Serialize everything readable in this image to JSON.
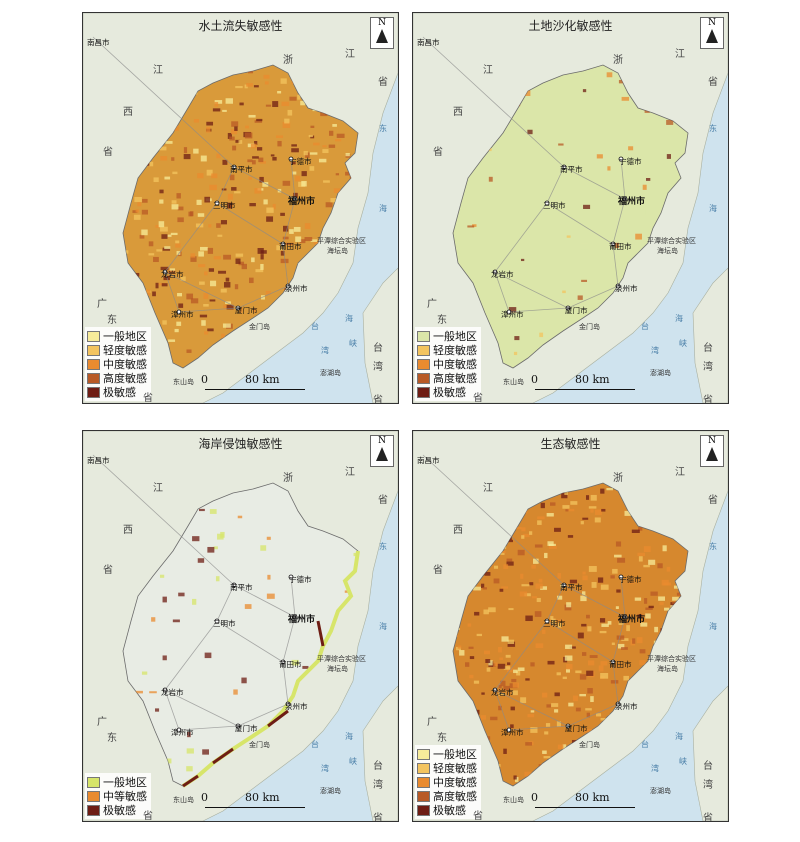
{
  "panels": [
    {
      "id": "soil",
      "title": "水土流失敏感性",
      "fill": "#d99a3a",
      "legend": [
        {
          "label": "一般地区",
          "color": "#f7ec9a"
        },
        {
          "label": "轻度敏感",
          "color": "#f3c45f"
        },
        {
          "label": "中度敏感",
          "color": "#e98b2f"
        },
        {
          "label": "高度敏感",
          "color": "#b85a26"
        },
        {
          "label": "极敏感",
          "color": "#6e1d14"
        }
      ]
    },
    {
      "id": "desert",
      "title": "土地沙化敏感性",
      "fill": "#dbe6a9",
      "legend": [
        {
          "label": "一般地区",
          "color": "#dbe6a9"
        },
        {
          "label": "轻度敏感",
          "color": "#f3c45f"
        },
        {
          "label": "中度敏感",
          "color": "#e98b2f"
        },
        {
          "label": "高度敏感",
          "color": "#b85a26"
        },
        {
          "label": "极敏感",
          "color": "#6e1d14"
        }
      ]
    },
    {
      "id": "coast",
      "title": "海岸侵蚀敏感性",
      "fill": "#e8ece4",
      "legend": [
        {
          "label": "一般地区",
          "color": "#d7e56a"
        },
        {
          "label": "中等敏感",
          "color": "#e98b2f"
        },
        {
          "label": "极敏感",
          "color": "#6e1d14"
        }
      ]
    },
    {
      "id": "eco",
      "title": "生态敏感性",
      "fill": "#d6882e",
      "legend": [
        {
          "label": "一般地区",
          "color": "#f7ec9a"
        },
        {
          "label": "轻度敏感",
          "color": "#f3c45f"
        },
        {
          "label": "中度敏感",
          "color": "#e98b2f"
        },
        {
          "label": "高度敏感",
          "color": "#b85a26"
        },
        {
          "label": "极敏感",
          "color": "#6e1d14"
        }
      ]
    }
  ],
  "map_labels": {
    "north": "N",
    "scale_zero": "0",
    "scale_dist": "80 km",
    "nanchang": "南昌市",
    "ningde": "宁德市",
    "nanping": "南平市",
    "fuzhou": "福州市",
    "sanming": "三明市",
    "putian": "莆田市",
    "pingtan": "平潭综合实验区",
    "longyan": "龙岩市",
    "quanzhou": "泉州市",
    "zhangzhou": "漳州市",
    "xiamen": "厦门市",
    "jinmen": "金门岛",
    "haitan": "海坛岛",
    "dongshan": "东山岛",
    "penghu": "澎湖岛",
    "zhe": "浙",
    "jiang_zj": "江",
    "sheng_zj": "省",
    "jiang_jx": "江",
    "xi": "西",
    "sheng_jx": "省",
    "guang": "广",
    "dong": "东",
    "sheng_gd": "省",
    "tai": "台",
    "wan": "湾",
    "sheng_tw": "省",
    "dong_sea": "东",
    "hai_sea": "海",
    "tai_str": "台",
    "wan_str": "湾",
    "hai_str": "海",
    "xia_str": "峡",
    "nan_sea": "南",
    "hai_sea2": "海"
  }
}
